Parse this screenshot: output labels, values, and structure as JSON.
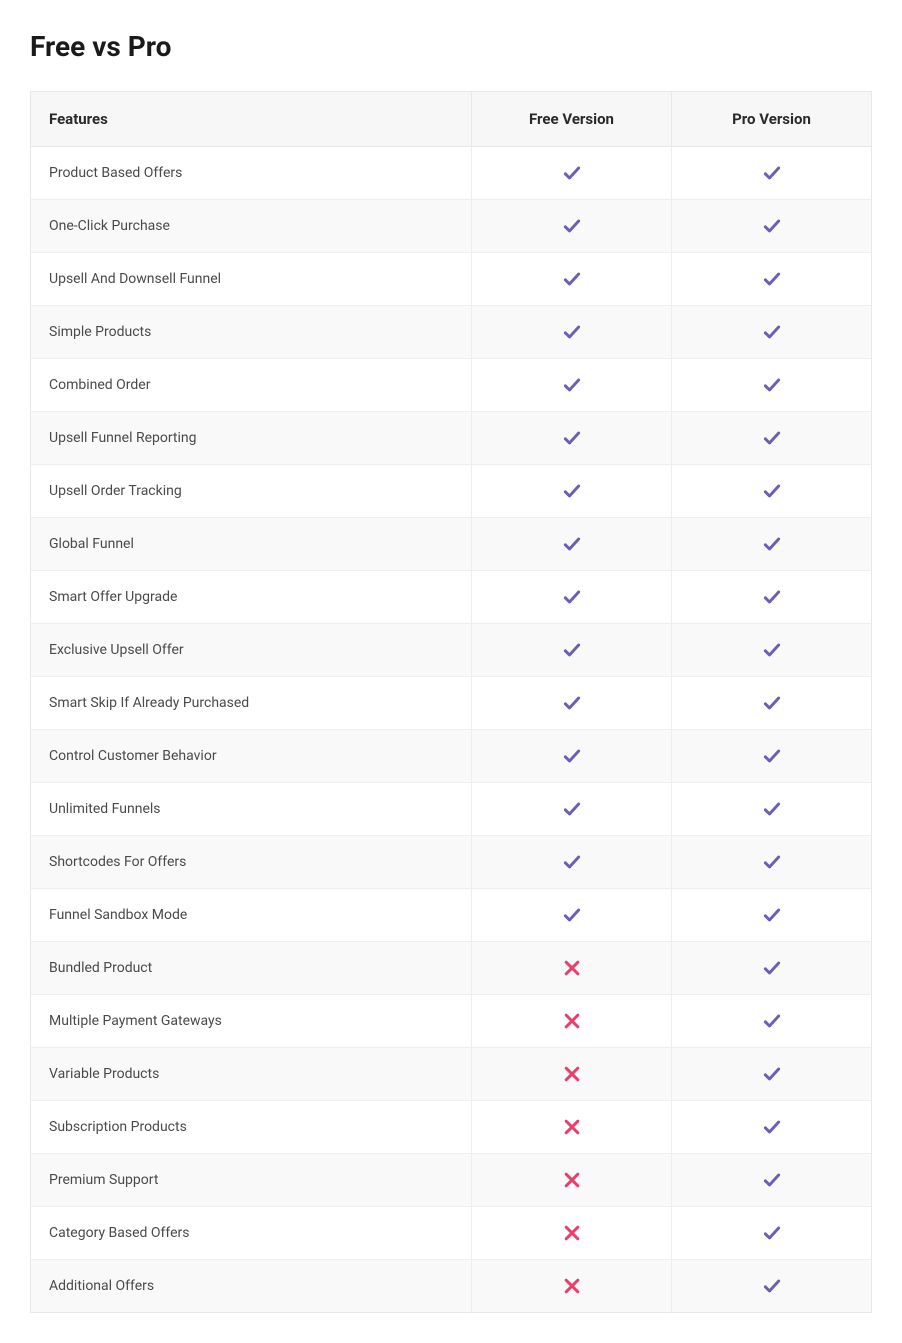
{
  "title": "Free vs Pro",
  "table": {
    "type": "table",
    "columns": [
      "Features",
      "Free Version",
      "Pro Version"
    ],
    "check_color": "#6b5fb3",
    "cross_color": "#e83e6b",
    "header_bg": "#f7f7f7",
    "row_alt_bg": "#f9f9f9",
    "row_bg": "#ffffff",
    "border_color": "#e8e8e8",
    "text_color": "#4a4a4a",
    "header_text_color": "#2a2a2a",
    "header_fontsize": 15,
    "cell_fontsize": 14,
    "rows": [
      {
        "feature": "Product Based Offers",
        "free": true,
        "pro": true
      },
      {
        "feature": "One-Click Purchase",
        "free": true,
        "pro": true
      },
      {
        "feature": "Upsell And Downsell Funnel",
        "free": true,
        "pro": true
      },
      {
        "feature": "Simple Products",
        "free": true,
        "pro": true
      },
      {
        "feature": "Combined Order",
        "free": true,
        "pro": true
      },
      {
        "feature": "Upsell Funnel Reporting",
        "free": true,
        "pro": true
      },
      {
        "feature": "Upsell Order Tracking",
        "free": true,
        "pro": true
      },
      {
        "feature": "Global Funnel",
        "free": true,
        "pro": true
      },
      {
        "feature": "Smart Offer Upgrade",
        "free": true,
        "pro": true
      },
      {
        "feature": "Exclusive Upsell Offer",
        "free": true,
        "pro": true
      },
      {
        "feature": "Smart Skip If Already Purchased",
        "free": true,
        "pro": true
      },
      {
        "feature": "Control Customer Behavior",
        "free": true,
        "pro": true
      },
      {
        "feature": "Unlimited Funnels",
        "free": true,
        "pro": true
      },
      {
        "feature": "Shortcodes For Offers",
        "free": true,
        "pro": true
      },
      {
        "feature": "Funnel Sandbox Mode",
        "free": true,
        "pro": true
      },
      {
        "feature": "Bundled Product",
        "free": false,
        "pro": true
      },
      {
        "feature": "Multiple Payment Gateways",
        "free": false,
        "pro": true
      },
      {
        "feature": "Variable Products",
        "free": false,
        "pro": true
      },
      {
        "feature": "Subscription Products",
        "free": false,
        "pro": true
      },
      {
        "feature": "Premium Support",
        "free": false,
        "pro": true
      },
      {
        "feature": "Category Based Offers",
        "free": false,
        "pro": true
      },
      {
        "feature": "Additional Offers",
        "free": false,
        "pro": true
      }
    ]
  }
}
